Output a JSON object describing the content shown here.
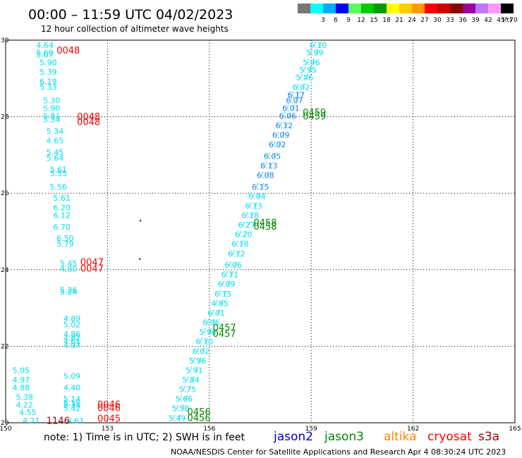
{
  "header": {
    "title": "00:00 – 11:59 UTC 04/02/2023",
    "subtitle": "12 hour collection of altimeter wave heights"
  },
  "legend": {
    "unit": "(ft)",
    "bins": [
      {
        "label": "",
        "color": "#777777"
      },
      {
        "label": "3",
        "color": "#00ffff"
      },
      {
        "label": "6",
        "color": "#00aaff"
      },
      {
        "label": "9",
        "color": "#0000ff"
      },
      {
        "label": "12",
        "color": "#55ff55"
      },
      {
        "label": "15",
        "color": "#00cc00"
      },
      {
        "label": "18",
        "color": "#009900"
      },
      {
        "label": "21",
        "color": "#ffff00"
      },
      {
        "label": "24",
        "color": "#ffcc00"
      },
      {
        "label": "27",
        "color": "#ff9900"
      },
      {
        "label": "30",
        "color": "#ff0000"
      },
      {
        "label": "33",
        "color": "#cc0000"
      },
      {
        "label": "36",
        "color": "#880000"
      },
      {
        "label": "39",
        "color": "#990099"
      },
      {
        "label": "42",
        "color": "#bb77ff"
      },
      {
        "label": "45",
        "color": "#ff99ff"
      },
      {
        "label": "70",
        "color": "#000000"
      }
    ]
  },
  "chart_data": {
    "type": "scatter",
    "xlim": [
      150,
      165
    ],
    "ylim": [
      20,
      30
    ],
    "xticks": [
      "150",
      "153",
      "156",
      "159",
      "162",
      "165"
    ],
    "yticks": [
      "30",
      "28",
      "26",
      "24",
      "22",
      "20"
    ],
    "grid": true,
    "colors": {
      "cyan": "#00e0f0",
      "blue": "#1a7fe0",
      "red": "#ff0000",
      "green": "#008800",
      "darkred": "#990000"
    },
    "swh_points": [
      {
        "x": 150.9,
        "y": 29.8,
        "v": "4.64",
        "c": "cyan"
      },
      {
        "x": 150.9,
        "y": 29.6,
        "v": "5.60",
        "c": "cyan"
      },
      {
        "x": 150.9,
        "y": 29.55,
        "v": "5.07",
        "c": "cyan"
      },
      {
        "x": 151.0,
        "y": 29.35,
        "v": "5.90",
        "c": "cyan"
      },
      {
        "x": 151.0,
        "y": 29.1,
        "v": "5.39",
        "c": "cyan"
      },
      {
        "x": 151.0,
        "y": 28.85,
        "v": "6.19",
        "c": "cyan"
      },
      {
        "x": 151.0,
        "y": 28.7,
        "v": "5.33",
        "c": "cyan"
      },
      {
        "x": 151.1,
        "y": 28.35,
        "v": "5.30",
        "c": "cyan"
      },
      {
        "x": 151.1,
        "y": 28.15,
        "v": "5.90",
        "c": "cyan"
      },
      {
        "x": 151.1,
        "y": 27.95,
        "v": "5.81",
        "c": "cyan"
      },
      {
        "x": 151.1,
        "y": 27.85,
        "v": "5.34",
        "c": "cyan"
      },
      {
        "x": 151.2,
        "y": 27.55,
        "v": "5.34",
        "c": "cyan"
      },
      {
        "x": 151.2,
        "y": 27.3,
        "v": "4.65",
        "c": "cyan"
      },
      {
        "x": 151.2,
        "y": 27.0,
        "v": "5.45",
        "c": "cyan"
      },
      {
        "x": 151.2,
        "y": 26.85,
        "v": "5.64",
        "c": "cyan"
      },
      {
        "x": 151.3,
        "y": 26.55,
        "v": "5.61",
        "c": "cyan"
      },
      {
        "x": 151.3,
        "y": 26.45,
        "v": "5.55",
        "c": "cyan"
      },
      {
        "x": 151.3,
        "y": 26.1,
        "v": "5.56",
        "c": "cyan"
      },
      {
        "x": 151.4,
        "y": 25.8,
        "v": "5.61",
        "c": "cyan"
      },
      {
        "x": 151.4,
        "y": 25.55,
        "v": "6.20",
        "c": "cyan"
      },
      {
        "x": 151.4,
        "y": 25.35,
        "v": "6.12",
        "c": "cyan"
      },
      {
        "x": 151.4,
        "y": 25.05,
        "v": "6.70",
        "c": "cyan"
      },
      {
        "x": 151.5,
        "y": 24.75,
        "v": "6.50",
        "c": "cyan"
      },
      {
        "x": 151.5,
        "y": 24.6,
        "v": "5.79",
        "c": "cyan"
      },
      {
        "x": 151.6,
        "y": 24.1,
        "v": "5.45",
        "c": "cyan"
      },
      {
        "x": 151.6,
        "y": 23.95,
        "v": "4.80",
        "c": "cyan"
      },
      {
        "x": 151.6,
        "y": 23.4,
        "v": "5.26",
        "c": "cyan"
      },
      {
        "x": 151.6,
        "y": 23.35,
        "v": "5.24",
        "c": "cyan"
      },
      {
        "x": 151.7,
        "y": 22.65,
        "v": "4.89",
        "c": "cyan"
      },
      {
        "x": 151.7,
        "y": 22.5,
        "v": "5.02",
        "c": "cyan"
      },
      {
        "x": 151.7,
        "y": 22.25,
        "v": "4.86",
        "c": "cyan"
      },
      {
        "x": 151.7,
        "y": 22.15,
        "v": "4.82",
        "c": "cyan"
      },
      {
        "x": 151.7,
        "y": 22.05,
        "v": "4.61",
        "c": "cyan"
      },
      {
        "x": 151.7,
        "y": 21.95,
        "v": "4.97",
        "c": "cyan"
      },
      {
        "x": 150.2,
        "y": 21.3,
        "v": "5.05",
        "c": "cyan"
      },
      {
        "x": 150.2,
        "y": 21.05,
        "v": "4.97",
        "c": "cyan"
      },
      {
        "x": 150.2,
        "y": 20.85,
        "v": "4.88",
        "c": "cyan"
      },
      {
        "x": 150.3,
        "y": 20.6,
        "v": "5.38",
        "c": "cyan"
      },
      {
        "x": 150.3,
        "y": 20.4,
        "v": "4.22",
        "c": "cyan"
      },
      {
        "x": 150.4,
        "y": 20.2,
        "v": "4.55",
        "c": "cyan"
      },
      {
        "x": 150.5,
        "y": 19.98,
        "v": "4.21",
        "c": "cyan"
      },
      {
        "x": 151.7,
        "y": 21.15,
        "v": "5.09",
        "c": "cyan"
      },
      {
        "x": 151.7,
        "y": 20.85,
        "v": "4.40",
        "c": "cyan"
      },
      {
        "x": 151.7,
        "y": 20.55,
        "v": "5.14",
        "c": "cyan"
      },
      {
        "x": 151.7,
        "y": 20.45,
        "v": "5.15",
        "c": "cyan"
      },
      {
        "x": 151.7,
        "y": 20.4,
        "v": "5.35",
        "c": "cyan"
      },
      {
        "x": 151.7,
        "y": 20.3,
        "v": "5.42",
        "c": "cyan"
      },
      {
        "x": 151.8,
        "y": 19.98,
        "v": "4.61",
        "c": "cyan"
      },
      {
        "x": 158.95,
        "y": 29.8,
        "v": "6.10",
        "c": "cyan"
      },
      {
        "x": 158.85,
        "y": 29.6,
        "v": "5.99",
        "c": "cyan"
      },
      {
        "x": 158.75,
        "y": 29.35,
        "v": "5.96",
        "c": "cyan"
      },
      {
        "x": 158.65,
        "y": 29.15,
        "v": "5.95",
        "c": "cyan"
      },
      {
        "x": 158.55,
        "y": 28.95,
        "v": "5.86",
        "c": "cyan"
      },
      {
        "x": 158.45,
        "y": 28.7,
        "v": "6.02",
        "c": "cyan"
      },
      {
        "x": 158.3,
        "y": 28.5,
        "v": "6.17",
        "c": "blue"
      },
      {
        "x": 158.25,
        "y": 28.35,
        "v": "6.07",
        "c": "blue"
      },
      {
        "x": 158.15,
        "y": 28.15,
        "v": "6.01",
        "c": "blue"
      },
      {
        "x": 158.05,
        "y": 27.95,
        "v": "6.06",
        "c": "blue"
      },
      {
        "x": 157.95,
        "y": 27.7,
        "v": "6.12",
        "c": "blue"
      },
      {
        "x": 157.85,
        "y": 27.45,
        "v": "6.09",
        "c": "blue"
      },
      {
        "x": 157.75,
        "y": 27.2,
        "v": "6.02",
        "c": "blue"
      },
      {
        "x": 157.6,
        "y": 26.9,
        "v": "6.05",
        "c": "blue"
      },
      {
        "x": 157.5,
        "y": 26.65,
        "v": "6.13",
        "c": "blue"
      },
      {
        "x": 157.4,
        "y": 26.4,
        "v": "6.08",
        "c": "blue"
      },
      {
        "x": 157.25,
        "y": 26.1,
        "v": "6.15",
        "c": "blue"
      },
      {
        "x": 157.15,
        "y": 25.85,
        "v": "6.04",
        "c": "cyan"
      },
      {
        "x": 157.05,
        "y": 25.6,
        "v": "6.13",
        "c": "cyan"
      },
      {
        "x": 156.95,
        "y": 25.35,
        "v": "6.18",
        "c": "cyan"
      },
      {
        "x": 156.85,
        "y": 25.1,
        "v": "6.27",
        "c": "cyan"
      },
      {
        "x": 156.75,
        "y": 24.85,
        "v": "6.20",
        "c": "cyan"
      },
      {
        "x": 156.65,
        "y": 24.6,
        "v": "6.18",
        "c": "cyan"
      },
      {
        "x": 156.55,
        "y": 24.35,
        "v": "6.12",
        "c": "cyan"
      },
      {
        "x": 156.45,
        "y": 24.05,
        "v": "6.06",
        "c": "cyan"
      },
      {
        "x": 156.35,
        "y": 23.8,
        "v": "6.11",
        "c": "cyan"
      },
      {
        "x": 156.25,
        "y": 23.55,
        "v": "6.09",
        "c": "cyan"
      },
      {
        "x": 156.15,
        "y": 23.3,
        "v": "6.15",
        "c": "cyan"
      },
      {
        "x": 156.05,
        "y": 23.05,
        "v": "4.85",
        "c": "cyan"
      },
      {
        "x": 155.95,
        "y": 22.8,
        "v": "6.01",
        "c": "cyan"
      },
      {
        "x": 155.8,
        "y": 22.55,
        "v": "6.06",
        "c": "cyan"
      },
      {
        "x": 155.7,
        "y": 22.3,
        "v": "5.98",
        "c": "cyan"
      },
      {
        "x": 155.6,
        "y": 22.05,
        "v": "6.10",
        "c": "cyan"
      },
      {
        "x": 155.5,
        "y": 21.8,
        "v": "6.02",
        "c": "cyan"
      },
      {
        "x": 155.4,
        "y": 21.55,
        "v": "5.96",
        "c": "cyan"
      },
      {
        "x": 155.3,
        "y": 21.3,
        "v": "5.91",
        "c": "cyan"
      },
      {
        "x": 155.2,
        "y": 21.05,
        "v": "5.84",
        "c": "cyan"
      },
      {
        "x": 155.1,
        "y": 20.8,
        "v": "5.75",
        "c": "cyan"
      },
      {
        "x": 155.0,
        "y": 20.55,
        "v": "5.66",
        "c": "cyan"
      },
      {
        "x": 154.9,
        "y": 20.3,
        "v": "5.58",
        "c": "cyan"
      },
      {
        "x": 154.8,
        "y": 20.05,
        "v": "5.49",
        "c": "cyan"
      }
    ],
    "time_labels": [
      {
        "x": 151.5,
        "y": 29.65,
        "t": "0048",
        "c": "red"
      },
      {
        "x": 152.1,
        "y": 27.92,
        "t": "0048",
        "c": "red"
      },
      {
        "x": 152.1,
        "y": 27.78,
        "t": "0048",
        "c": "red"
      },
      {
        "x": 152.2,
        "y": 24.12,
        "t": "0047",
        "c": "red"
      },
      {
        "x": 152.2,
        "y": 23.95,
        "t": "0047",
        "c": "red"
      },
      {
        "x": 152.7,
        "y": 20.4,
        "t": "0046",
        "c": "red"
      },
      {
        "x": 152.7,
        "y": 20.3,
        "t": "0046",
        "c": "red"
      },
      {
        "x": 152.7,
        "y": 20.03,
        "t": "0045",
        "c": "red"
      },
      {
        "x": 151.2,
        "y": 19.97,
        "t": "1146",
        "c": "darkred"
      },
      {
        "x": 158.75,
        "y": 28.03,
        "t": "0459",
        "c": "green"
      },
      {
        "x": 158.75,
        "y": 27.93,
        "t": "0459",
        "c": "green"
      },
      {
        "x": 157.3,
        "y": 25.15,
        "t": "0458",
        "c": "green"
      },
      {
        "x": 157.3,
        "y": 25.05,
        "t": "0458",
        "c": "green"
      },
      {
        "x": 156.1,
        "y": 22.4,
        "t": "0457",
        "c": "green"
      },
      {
        "x": 156.1,
        "y": 22.25,
        "t": "0457",
        "c": "green"
      },
      {
        "x": 155.35,
        "y": 20.2,
        "t": "0456",
        "c": "green"
      },
      {
        "x": 155.35,
        "y": 20.05,
        "t": "0456",
        "c": "green"
      }
    ],
    "markers": [
      {
        "x": 153.95,
        "y": 25.3
      },
      {
        "x": 153.93,
        "y": 24.3
      }
    ]
  },
  "footer": {
    "note": "note: 1) Time is in UTC; 2) SWH is in feet",
    "satellites": [
      {
        "name": "jason2",
        "color": "#0000cc"
      },
      {
        "name": "jason3",
        "color": "#008800"
      },
      {
        "name": "altika",
        "color": "#ff8800"
      },
      {
        "name": "cryosat",
        "color": "#ff0000"
      },
      {
        "name": "s3a",
        "color": "#990000"
      }
    ],
    "credit": "NOAA/NESDIS Center for Satellite Applications and Research",
    "timestamp": "Apr  4 08:30:24 UTC 2023"
  }
}
